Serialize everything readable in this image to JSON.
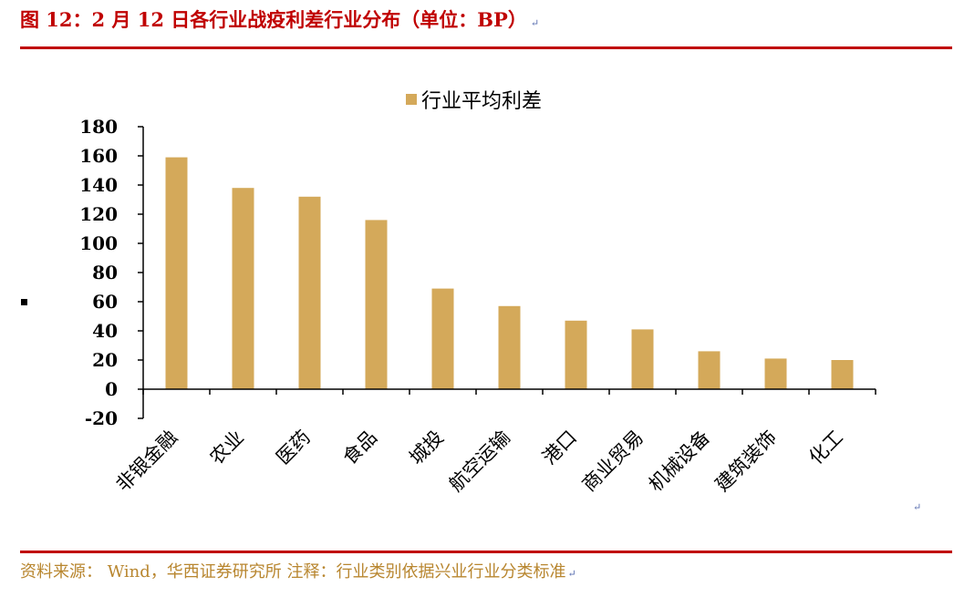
{
  "header": {
    "title": "图 12：2 月 12 日各行业战疫利差行业分布（单位：BP）",
    "return_mark": "↵"
  },
  "footer": {
    "source": "资料来源： Wind，华西证券研究所 注释：行业类别依据兴业行业分类标准",
    "return_mark": "↵"
  },
  "misc": {
    "mid_return_mark": "↵"
  },
  "colors": {
    "bar": "#d4a95a",
    "accent": "#c00000",
    "source_text": "#b8862f"
  },
  "chart_data": {
    "type": "bar",
    "legend": "行业平均利差",
    "legend_position": "top-center",
    "categories": [
      "非银金融",
      "农业",
      "医药",
      "食品",
      "城投",
      "航空运输",
      "港口",
      "商业贸易",
      "机械设备",
      "建筑装饰",
      "化工"
    ],
    "series": [
      {
        "name": "行业平均利差",
        "values": [
          159,
          138,
          132,
          116,
          69,
          57,
          47,
          41,
          26,
          21,
          20
        ]
      }
    ],
    "ylim": [
      -20,
      180
    ],
    "yticks": [
      180,
      160,
      140,
      120,
      100,
      80,
      60,
      40,
      20,
      0,
      -20
    ],
    "grid": false
  }
}
